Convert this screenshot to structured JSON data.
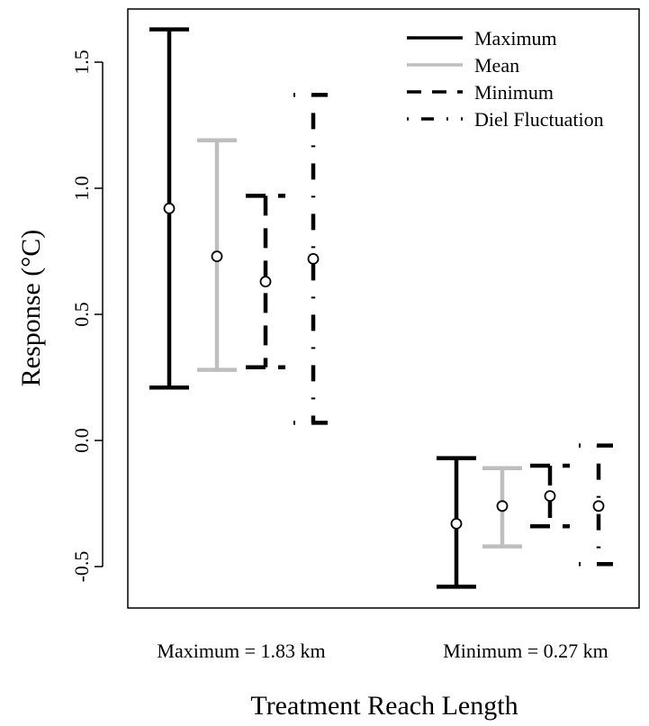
{
  "chart_data": {
    "type": "errorbar",
    "xlabel": "Treatment Reach Length",
    "ylabel": "Response (°C)",
    "ylim": [
      -0.66,
      1.74
    ],
    "yticks": [
      -0.5,
      0.0,
      0.5,
      1.0,
      1.5
    ],
    "ytick_labels": [
      "-0.5",
      "0.0",
      "0.5",
      "1.0",
      "1.5"
    ],
    "grid": false,
    "legend_position": "top-right",
    "categories": [
      "Maximum = 1.83 km",
      "Minimum = 0.27 km"
    ],
    "series": [
      {
        "name": "Maximum",
        "color": "#000000",
        "style": "solid",
        "means": [
          0.92,
          -0.33
        ],
        "lows": [
          0.21,
          -0.58
        ],
        "highs": [
          1.63,
          -0.07
        ]
      },
      {
        "name": "Mean",
        "color": "#bebebe",
        "style": "solid",
        "means": [
          0.73,
          -0.26
        ],
        "lows": [
          0.28,
          -0.42
        ],
        "highs": [
          1.19,
          -0.11
        ]
      },
      {
        "name": "Minimum",
        "color": "#000000",
        "style": "dashed",
        "means": [
          0.63,
          -0.22
        ],
        "lows": [
          0.29,
          -0.34
        ],
        "highs": [
          0.97,
          -0.1
        ]
      },
      {
        "name": "Diel Fluctuation",
        "color": "#000000",
        "style": "dotdash",
        "means": [
          0.72,
          -0.26
        ],
        "lows": [
          0.07,
          -0.49
        ],
        "highs": [
          1.37,
          -0.02
        ]
      }
    ]
  }
}
